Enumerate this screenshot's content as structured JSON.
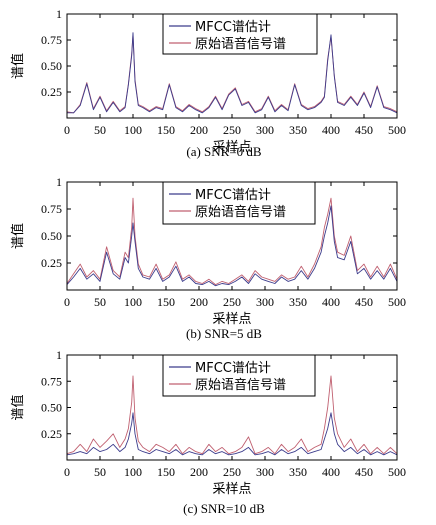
{
  "chart_data": [
    {
      "type": "line",
      "caption": "(a) SNR=0 dB",
      "xlabel": "采样点",
      "ylabel": "谱值",
      "xlim": [
        0,
        500
      ],
      "ylim": [
        0,
        1
      ],
      "xticks": [
        0,
        50,
        100,
        150,
        200,
        250,
        300,
        350,
        400,
        450,
        500
      ],
      "yticks": [
        0.25,
        0.5,
        0.75,
        1
      ],
      "ytick_labels": [
        "0.25",
        "0.50",
        "0.75",
        "1"
      ],
      "grid": false,
      "legend_position": "top-right",
      "series": [
        {
          "name": "MFCC谱估计",
          "color": "#3c3c8c",
          "x": [
            0,
            10,
            20,
            30,
            40,
            50,
            60,
            70,
            80,
            88,
            93,
            98,
            100,
            103,
            108,
            115,
            125,
            135,
            145,
            155,
            165,
            175,
            185,
            195,
            205,
            215,
            225,
            235,
            245,
            255,
            265,
            275,
            285,
            295,
            305,
            315,
            325,
            335,
            345,
            355,
            365,
            375,
            385,
            390,
            395,
            400,
            405,
            410,
            420,
            430,
            440,
            450,
            460,
            470,
            480,
            490,
            500
          ],
          "values": [
            0.05,
            0.05,
            0.12,
            0.33,
            0.08,
            0.2,
            0.06,
            0.15,
            0.06,
            0.1,
            0.32,
            0.6,
            0.82,
            0.35,
            0.12,
            0.1,
            0.06,
            0.1,
            0.08,
            0.32,
            0.1,
            0.06,
            0.12,
            0.08,
            0.05,
            0.1,
            0.2,
            0.08,
            0.22,
            0.28,
            0.12,
            0.15,
            0.05,
            0.08,
            0.2,
            0.06,
            0.12,
            0.07,
            0.32,
            0.12,
            0.08,
            0.1,
            0.15,
            0.2,
            0.55,
            0.8,
            0.4,
            0.15,
            0.12,
            0.2,
            0.12,
            0.24,
            0.1,
            0.3,
            0.1,
            0.08,
            0.05
          ]
        },
        {
          "name": "原始语音信号谱",
          "color": "#c06070",
          "x": [
            0,
            10,
            20,
            30,
            40,
            50,
            60,
            70,
            80,
            88,
            93,
            98,
            100,
            103,
            108,
            115,
            125,
            135,
            145,
            155,
            165,
            175,
            185,
            195,
            205,
            215,
            225,
            235,
            245,
            255,
            265,
            275,
            285,
            295,
            305,
            315,
            325,
            335,
            345,
            355,
            365,
            375,
            385,
            390,
            395,
            400,
            405,
            410,
            420,
            430,
            440,
            450,
            460,
            470,
            480,
            490,
            500
          ],
          "values": [
            0.06,
            0.05,
            0.13,
            0.34,
            0.09,
            0.21,
            0.07,
            0.16,
            0.07,
            0.11,
            0.33,
            0.62,
            0.8,
            0.37,
            0.13,
            0.11,
            0.07,
            0.11,
            0.09,
            0.33,
            0.11,
            0.07,
            0.13,
            0.09,
            0.06,
            0.11,
            0.21,
            0.09,
            0.23,
            0.29,
            0.13,
            0.16,
            0.06,
            0.09,
            0.21,
            0.07,
            0.13,
            0.08,
            0.33,
            0.13,
            0.09,
            0.11,
            0.16,
            0.21,
            0.57,
            0.78,
            0.41,
            0.16,
            0.13,
            0.21,
            0.13,
            0.25,
            0.11,
            0.31,
            0.11,
            0.09,
            0.06
          ]
        }
      ]
    },
    {
      "type": "line",
      "caption": "(b) SNR=5 dB",
      "xlabel": "采样点",
      "ylabel": "谱值",
      "xlim": [
        0,
        500
      ],
      "ylim": [
        0,
        1
      ],
      "xticks": [
        0,
        50,
        100,
        150,
        200,
        250,
        300,
        350,
        400,
        450,
        500
      ],
      "yticks": [
        0.25,
        0.5,
        0.75,
        1
      ],
      "ytick_labels": [
        "0.25",
        "0.50",
        "0.75",
        "1"
      ],
      "grid": false,
      "legend_position": "top-center",
      "series": [
        {
          "name": "MFCC谱估计",
          "color": "#3c3c8c",
          "x": [
            0,
            10,
            20,
            30,
            40,
            50,
            60,
            70,
            80,
            88,
            93,
            98,
            100,
            103,
            108,
            115,
            125,
            135,
            145,
            155,
            165,
            175,
            185,
            195,
            205,
            215,
            225,
            235,
            245,
            255,
            265,
            275,
            285,
            295,
            305,
            315,
            325,
            335,
            345,
            355,
            365,
            375,
            385,
            390,
            395,
            400,
            405,
            410,
            420,
            430,
            440,
            450,
            460,
            470,
            480,
            490,
            500
          ],
          "values": [
            0.05,
            0.12,
            0.2,
            0.1,
            0.15,
            0.08,
            0.35,
            0.15,
            0.1,
            0.3,
            0.25,
            0.5,
            0.62,
            0.45,
            0.2,
            0.12,
            0.1,
            0.2,
            0.08,
            0.12,
            0.22,
            0.08,
            0.12,
            0.06,
            0.05,
            0.08,
            0.04,
            0.06,
            0.05,
            0.08,
            0.12,
            0.06,
            0.15,
            0.1,
            0.08,
            0.06,
            0.12,
            0.08,
            0.1,
            0.18,
            0.1,
            0.2,
            0.35,
            0.5,
            0.62,
            0.78,
            0.45,
            0.3,
            0.28,
            0.45,
            0.15,
            0.2,
            0.1,
            0.18,
            0.1,
            0.2,
            0.08
          ]
        },
        {
          "name": "原始语音信号谱",
          "color": "#c06070",
          "x": [
            0,
            10,
            20,
            30,
            40,
            50,
            60,
            70,
            80,
            88,
            93,
            98,
            100,
            103,
            108,
            115,
            125,
            135,
            145,
            155,
            165,
            175,
            185,
            195,
            205,
            215,
            225,
            235,
            245,
            255,
            265,
            275,
            285,
            295,
            305,
            315,
            325,
            335,
            345,
            355,
            365,
            375,
            385,
            390,
            395,
            400,
            405,
            410,
            420,
            430,
            440,
            450,
            460,
            470,
            480,
            490,
            500
          ],
          "values": [
            0.06,
            0.15,
            0.24,
            0.12,
            0.18,
            0.1,
            0.4,
            0.18,
            0.12,
            0.35,
            0.3,
            0.58,
            0.85,
            0.5,
            0.24,
            0.14,
            0.12,
            0.24,
            0.1,
            0.14,
            0.26,
            0.1,
            0.14,
            0.08,
            0.06,
            0.1,
            0.05,
            0.08,
            0.06,
            0.1,
            0.14,
            0.08,
            0.18,
            0.12,
            0.1,
            0.08,
            0.14,
            0.1,
            0.12,
            0.22,
            0.12,
            0.24,
            0.4,
            0.58,
            0.7,
            0.85,
            0.5,
            0.35,
            0.32,
            0.5,
            0.18,
            0.24,
            0.12,
            0.22,
            0.12,
            0.24,
            0.1
          ]
        }
      ]
    },
    {
      "type": "line",
      "caption": "(c) SNR=10 dB",
      "xlabel": "采样点",
      "ylabel": "谱值",
      "xlim": [
        0,
        500
      ],
      "ylim": [
        0,
        1
      ],
      "xticks": [
        0,
        50,
        100,
        150,
        200,
        250,
        300,
        350,
        400,
        450,
        500
      ],
      "yticks": [
        0.25,
        0.5,
        0.75,
        1
      ],
      "ytick_labels": [
        "0.25",
        "0.50",
        "0.75",
        "1"
      ],
      "grid": false,
      "legend_position": "top-center",
      "series": [
        {
          "name": "MFCC谱估计",
          "color": "#3c3c8c",
          "x": [
            0,
            10,
            20,
            30,
            40,
            50,
            60,
            70,
            80,
            88,
            93,
            98,
            100,
            103,
            108,
            115,
            125,
            135,
            145,
            155,
            165,
            175,
            185,
            195,
            205,
            215,
            225,
            235,
            245,
            255,
            265,
            275,
            285,
            295,
            305,
            315,
            325,
            335,
            345,
            355,
            365,
            375,
            385,
            390,
            395,
            400,
            405,
            410,
            420,
            430,
            440,
            450,
            460,
            470,
            480,
            490,
            500
          ],
          "values": [
            0.05,
            0.06,
            0.08,
            0.06,
            0.12,
            0.08,
            0.1,
            0.15,
            0.08,
            0.12,
            0.2,
            0.35,
            0.45,
            0.25,
            0.1,
            0.08,
            0.06,
            0.1,
            0.08,
            0.06,
            0.1,
            0.05,
            0.08,
            0.06,
            0.05,
            0.1,
            0.06,
            0.08,
            0.05,
            0.06,
            0.08,
            0.12,
            0.05,
            0.06,
            0.08,
            0.05,
            0.1,
            0.06,
            0.08,
            0.12,
            0.06,
            0.08,
            0.1,
            0.2,
            0.3,
            0.45,
            0.25,
            0.15,
            0.08,
            0.12,
            0.06,
            0.1,
            0.05,
            0.08,
            0.05,
            0.08,
            0.05
          ]
        },
        {
          "name": "原始语音信号谱",
          "color": "#c06070",
          "x": [
            0,
            10,
            20,
            30,
            40,
            50,
            60,
            70,
            80,
            88,
            93,
            98,
            100,
            103,
            108,
            115,
            125,
            135,
            145,
            155,
            165,
            175,
            185,
            195,
            205,
            215,
            225,
            235,
            245,
            255,
            265,
            275,
            285,
            295,
            305,
            315,
            325,
            335,
            345,
            355,
            365,
            375,
            385,
            390,
            395,
            400,
            405,
            410,
            420,
            430,
            440,
            450,
            460,
            470,
            480,
            490,
            500
          ],
          "values": [
            0.06,
            0.08,
            0.15,
            0.08,
            0.2,
            0.12,
            0.18,
            0.25,
            0.12,
            0.2,
            0.3,
            0.55,
            0.8,
            0.4,
            0.18,
            0.12,
            0.08,
            0.15,
            0.12,
            0.08,
            0.15,
            0.06,
            0.12,
            0.08,
            0.06,
            0.15,
            0.08,
            0.12,
            0.06,
            0.08,
            0.12,
            0.22,
            0.06,
            0.08,
            0.12,
            0.06,
            0.15,
            0.08,
            0.12,
            0.2,
            0.08,
            0.12,
            0.15,
            0.3,
            0.5,
            0.8,
            0.4,
            0.25,
            0.12,
            0.2,
            0.08,
            0.15,
            0.06,
            0.12,
            0.06,
            0.12,
            0.06
          ]
        }
      ]
    }
  ]
}
